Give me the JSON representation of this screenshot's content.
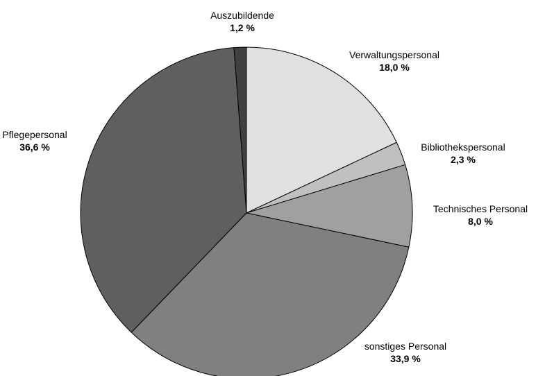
{
  "chart_data": {
    "type": "pie",
    "title": "",
    "slices": [
      {
        "label": "Verwaltungspersonal",
        "value": 18.0,
        "value_text": "18,0 %",
        "color": "#e0e0e0"
      },
      {
        "label": "Bibliothekspersonal",
        "value": 2.3,
        "value_text": "2,3 %",
        "color": "#c0c0c0"
      },
      {
        "label": "Technisches Personal",
        "value": 8.0,
        "value_text": "8,0 %",
        "color": "#a0a0a0"
      },
      {
        "label": "sonstiges Personal",
        "value": 33.9,
        "value_text": "33,9 %",
        "color": "#808080"
      },
      {
        "label": "Pflegepersonal",
        "value": 36.6,
        "value_text": "36,6 %",
        "color": "#5f5f5f"
      },
      {
        "label": "Auszubildende",
        "value": 1.2,
        "value_text": "1,2 %",
        "color": "#404040"
      }
    ],
    "start_angle": "12 o'clock",
    "direction": "clockwise",
    "legend": "none",
    "labels": "outside"
  }
}
